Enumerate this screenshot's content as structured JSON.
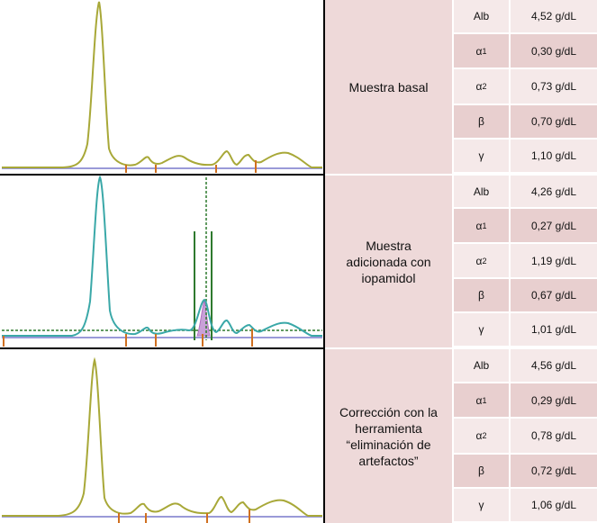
{
  "panels": [
    {
      "label": "Muestra basal",
      "rows": [
        {
          "fraction": "Alb",
          "value": "4,52 g/dL"
        },
        {
          "fraction": "α1",
          "value": "0,30 g/dL"
        },
        {
          "fraction": "α2",
          "value": "0,73 g/dL"
        },
        {
          "fraction": "β",
          "value": "0,70 g/dL"
        },
        {
          "fraction": "γ",
          "value": "1,10 g/dL"
        }
      ]
    },
    {
      "label": "Muestra adicionada con iopamidol",
      "rows": [
        {
          "fraction": "Alb",
          "value": "4,26 g/dL"
        },
        {
          "fraction": "α1",
          "value": "0,27 g/dL"
        },
        {
          "fraction": "α2",
          "value": "1,19 g/dL"
        },
        {
          "fraction": "β",
          "value": "0,67 g/dL"
        },
        {
          "fraction": "γ",
          "value": "1,01 g/dL"
        }
      ]
    },
    {
      "label": "Corrección con la herramienta “eliminación de artefactos”",
      "rows": [
        {
          "fraction": "Alb",
          "value": "4,56 g/dL"
        },
        {
          "fraction": "α1",
          "value": "0,29 g/dL"
        },
        {
          "fraction": "α2",
          "value": "0,78 g/dL"
        },
        {
          "fraction": "β",
          "value": "0,72 g/dL"
        },
        {
          "fraction": "γ",
          "value": "1,06 g/dL"
        }
      ]
    }
  ],
  "colors": {
    "curve_basal": "#a8a838",
    "curve_iopamidol": "#3aa8a8",
    "baseline": "#9a9ad8",
    "marker": "#d07020",
    "artifact_line": "#2f7a2f",
    "artifact_fill": "#c9a0d8",
    "cell_dark": "#e8cfcf",
    "cell_light": "#f5e9e9",
    "label_bg": "#eed9d9"
  }
}
